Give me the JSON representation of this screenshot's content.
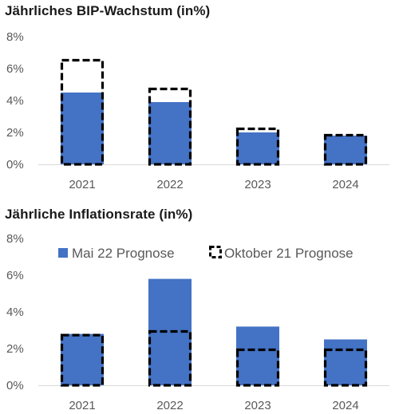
{
  "colors": {
    "bar_fill": "#4472C4",
    "forecast_outline": "#000000",
    "axis": "#d9d9d9",
    "text": "#595959"
  },
  "chart_data": [
    {
      "type": "bar",
      "title": "Jährliches BIP-Wachstum (in%)",
      "categories": [
        "2021",
        "2022",
        "2023",
        "2024"
      ],
      "ylim": [
        0,
        8
      ],
      "yticks": [
        "0%",
        "2%",
        "4%",
        "6%",
        "8%"
      ],
      "grid": false,
      "legend": "none",
      "series": [
        {
          "name": "Mai 22 Prognose",
          "style": "filled",
          "values": [
            4.5,
            3.9,
            2.0,
            1.8
          ]
        },
        {
          "name": "Oktober 21 Prognose",
          "style": "dashed-outline",
          "values": [
            6.6,
            4.8,
            2.3,
            1.9
          ]
        }
      ]
    },
    {
      "type": "bar",
      "title": "Jährliche Inflationsrate (in%)",
      "categories": [
        "2021",
        "2022",
        "2023",
        "2024"
      ],
      "ylim": [
        0,
        8
      ],
      "yticks": [
        "0%",
        "2%",
        "4%",
        "6%",
        "8%"
      ],
      "grid": false,
      "legend": "top-right",
      "series": [
        {
          "name": "Mai 22 Prognose",
          "style": "filled",
          "values": [
            2.8,
            5.8,
            3.2,
            2.5
          ]
        },
        {
          "name": "Oktober 21 Prognose",
          "style": "dashed-outline",
          "values": [
            2.8,
            3.0,
            2.0,
            2.0
          ]
        }
      ]
    }
  ]
}
